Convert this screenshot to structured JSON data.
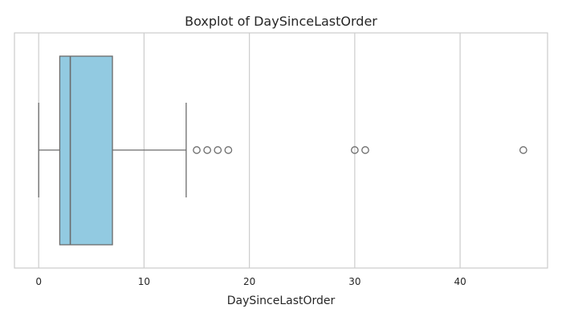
{
  "chart_data": {
    "type": "box",
    "title": "Boxplot of DaySinceLastOrder",
    "xlabel": "DaySinceLastOrder",
    "ylabel": "",
    "xlim": [
      -2.3,
      48.3
    ],
    "xticks": [
      0,
      10,
      20,
      30,
      40
    ],
    "xtick_labels": [
      "0",
      "10",
      "20",
      "30",
      "40"
    ],
    "grid": true,
    "orientation": "horizontal",
    "box": {
      "whisker_low": 0,
      "q1": 2,
      "median": 3,
      "q3": 7,
      "whisker_high": 14
    },
    "outliers": [
      15,
      16,
      17,
      18,
      30,
      31,
      46
    ],
    "colors": {
      "box_fill": "#92cae1",
      "line": "#6b6b6b",
      "grid": "#cccccc",
      "frame": "#cccccc"
    }
  }
}
